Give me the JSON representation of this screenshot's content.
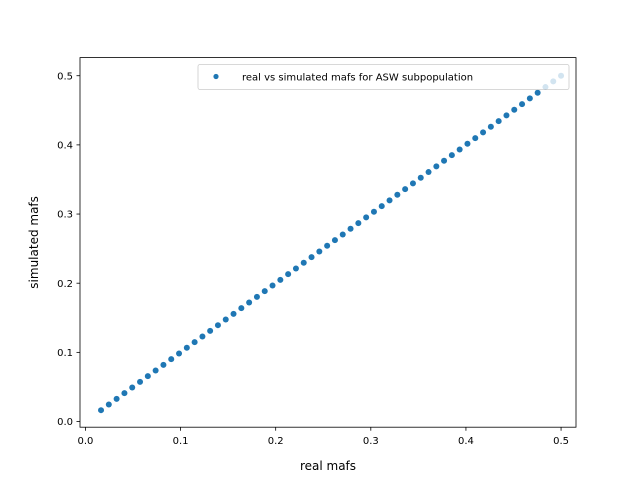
{
  "chart_data": {
    "type": "scatter",
    "title": "",
    "xlabel": "real mafs",
    "ylabel": "simulated mafs",
    "xlim": [
      -0.0057,
      0.5157
    ],
    "ylim": [
      -0.0082,
      0.5262
    ],
    "xticks": [
      "0.0",
      "0.1",
      "0.2",
      "0.3",
      "0.4",
      "0.5"
    ],
    "yticks": [
      "0.0",
      "0.1",
      "0.2",
      "0.3",
      "0.4",
      "0.5"
    ],
    "xtick_values": [
      0.0,
      0.1,
      0.2,
      0.3,
      0.4,
      0.5
    ],
    "ytick_values": [
      0.0,
      0.1,
      0.2,
      0.3,
      0.4,
      0.5
    ],
    "grid": false,
    "legend_position": "top-right",
    "color": "#1f77b4",
    "series": [
      {
        "name": "real vs simulated mafs for ASW subpopulation",
        "points": [
          [
            0.0164,
            0.0164
          ],
          [
            0.0246,
            0.0246
          ],
          [
            0.0328,
            0.0328
          ],
          [
            0.041,
            0.041
          ],
          [
            0.0492,
            0.0492
          ],
          [
            0.0574,
            0.0574
          ],
          [
            0.0656,
            0.0656
          ],
          [
            0.0738,
            0.0738
          ],
          [
            0.082,
            0.082
          ],
          [
            0.0902,
            0.0902
          ],
          [
            0.0984,
            0.0984
          ],
          [
            0.1066,
            0.1066
          ],
          [
            0.1148,
            0.1148
          ],
          [
            0.123,
            0.123
          ],
          [
            0.1311,
            0.1311
          ],
          [
            0.1393,
            0.1393
          ],
          [
            0.1475,
            0.1475
          ],
          [
            0.1557,
            0.1557
          ],
          [
            0.1639,
            0.1639
          ],
          [
            0.1721,
            0.1721
          ],
          [
            0.1803,
            0.1803
          ],
          [
            0.1885,
            0.1885
          ],
          [
            0.1967,
            0.1967
          ],
          [
            0.2049,
            0.2049
          ],
          [
            0.2131,
            0.2131
          ],
          [
            0.2213,
            0.2213
          ],
          [
            0.2295,
            0.2295
          ],
          [
            0.2377,
            0.2377
          ],
          [
            0.2459,
            0.2459
          ],
          [
            0.2541,
            0.2541
          ],
          [
            0.2623,
            0.2623
          ],
          [
            0.2705,
            0.2705
          ],
          [
            0.2787,
            0.2787
          ],
          [
            0.2869,
            0.2869
          ],
          [
            0.2951,
            0.2951
          ],
          [
            0.3033,
            0.3033
          ],
          [
            0.3115,
            0.3115
          ],
          [
            0.3197,
            0.3197
          ],
          [
            0.3279,
            0.3279
          ],
          [
            0.3361,
            0.3361
          ],
          [
            0.3443,
            0.3443
          ],
          [
            0.3525,
            0.3525
          ],
          [
            0.3607,
            0.3607
          ],
          [
            0.3689,
            0.3689
          ],
          [
            0.377,
            0.377
          ],
          [
            0.3852,
            0.3852
          ],
          [
            0.3934,
            0.3934
          ],
          [
            0.4016,
            0.4016
          ],
          [
            0.4098,
            0.4098
          ],
          [
            0.418,
            0.418
          ],
          [
            0.4262,
            0.4262
          ],
          [
            0.4344,
            0.4344
          ],
          [
            0.4426,
            0.4426
          ],
          [
            0.4508,
            0.4508
          ],
          [
            0.459,
            0.459
          ],
          [
            0.4672,
            0.4672
          ],
          [
            0.4754,
            0.4754
          ],
          [
            0.4836,
            0.4836
          ],
          [
            0.4918,
            0.4918
          ],
          [
            0.5,
            0.5
          ]
        ]
      }
    ]
  }
}
